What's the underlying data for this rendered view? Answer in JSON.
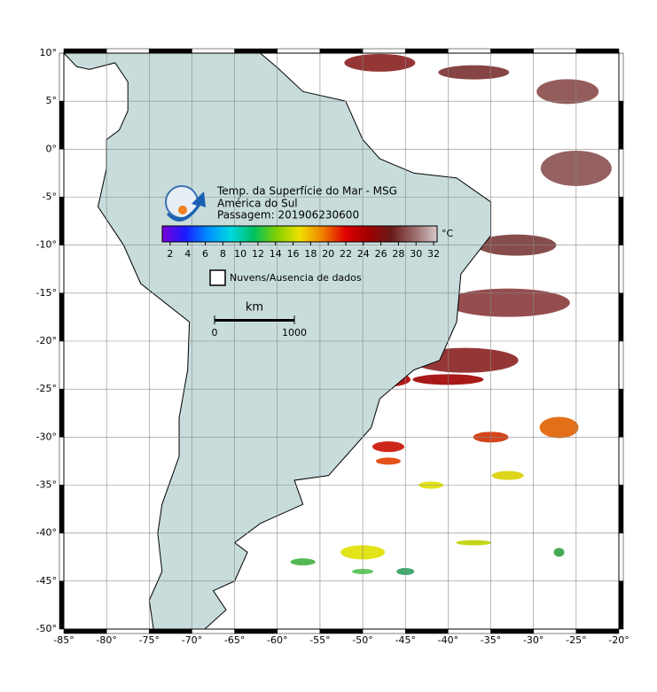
{
  "map": {
    "title": "Temp. da Superfície do Mar - MSG",
    "subtitle": "América do Sul",
    "pass": "Passagem: 201906230600",
    "colorbar": {
      "unit": "°C",
      "lim": [
        1.1,
        32.4
      ],
      "ticks": [
        2,
        4,
        6,
        8,
        10,
        12,
        14,
        16,
        18,
        20,
        22,
        24,
        26,
        28,
        30,
        32
      ],
      "colors": [
        "#7a00d8",
        "#1a1aff",
        "#0090ff",
        "#00d8e0",
        "#00c060",
        "#80d000",
        "#f0e000",
        "#f08000",
        "#e00000",
        "#a00000",
        "#6a1a1a",
        "#9a6a6a",
        "#d8c8c8"
      ]
    },
    "legend": "Nuvens/Ausencia de dados",
    "scale": {
      "unit": "km",
      "ticks": [
        0,
        1000
      ]
    },
    "xlim": [
      -85,
      -20
    ],
    "xticks": [
      {
        "value": -85,
        "label": "-85°"
      },
      {
        "value": -80,
        "label": "-80°"
      },
      {
        "value": -75,
        "label": "-75°"
      },
      {
        "value": -70,
        "label": "-70°"
      },
      {
        "value": -65,
        "label": "-65°"
      },
      {
        "value": -60,
        "label": "-60°"
      },
      {
        "value": -55,
        "label": "-55°"
      },
      {
        "value": -50,
        "label": "-50°"
      },
      {
        "value": -45,
        "label": "-45°"
      },
      {
        "value": -40,
        "label": "-40°"
      },
      {
        "value": -35,
        "label": "-35°"
      },
      {
        "value": -30,
        "label": "-30°"
      },
      {
        "value": -25,
        "label": "-25°"
      },
      {
        "value": -20,
        "label": "-20°"
      }
    ],
    "ylim": [
      -50,
      10
    ],
    "yticks": [
      {
        "value": 10,
        "label": "10°"
      },
      {
        "value": 5,
        "label": "5°"
      },
      {
        "value": 0,
        "label": "0°"
      },
      {
        "value": -5,
        "label": "-5°"
      },
      {
        "value": -10,
        "label": "-10°"
      },
      {
        "value": -15,
        "label": "-15°"
      },
      {
        "value": -20,
        "label": "-20°"
      },
      {
        "value": -25,
        "label": "-25°"
      },
      {
        "value": -30,
        "label": "-30°"
      },
      {
        "value": -35,
        "label": "-35°"
      },
      {
        "value": -40,
        "label": "-40°"
      },
      {
        "value": -45,
        "label": "-45°"
      },
      {
        "value": -50,
        "label": "-50°"
      }
    ]
  }
}
